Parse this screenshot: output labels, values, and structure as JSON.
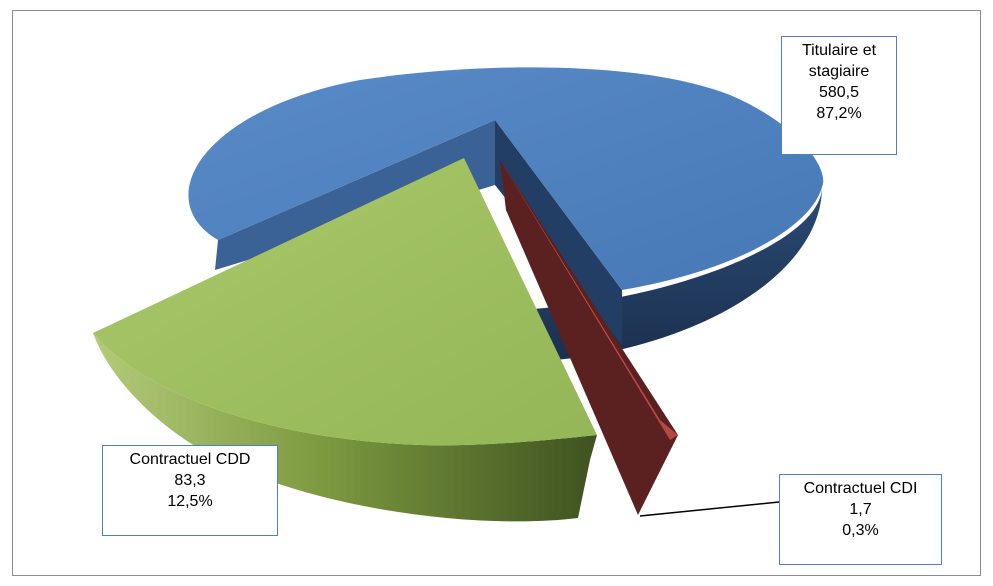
{
  "chart_data": {
    "type": "pie",
    "title": "",
    "series": [
      {
        "name": "",
        "slices": [
          {
            "label": "Titulaire  et stagiaire",
            "label_lines": [
              "Titulaire  et",
              "stagiaire"
            ],
            "value": 580.5,
            "value_text": "580,5",
            "percent": 87.2,
            "percent_text": "87,2%",
            "color": "#4f81bd"
          },
          {
            "label": "Contractuel  CDI",
            "label_lines": [
              "Contractuel  CDI"
            ],
            "value": 1.7,
            "value_text": "1,7",
            "percent": 0.3,
            "percent_text": "0,3%",
            "color": "#c0504d"
          },
          {
            "label": "Contractuel  CDD",
            "label_lines": [
              "Contractuel  CDD"
            ],
            "value": 83.3,
            "value_text": "83,3",
            "percent": 12.5,
            "percent_text": "12,5%",
            "color": "#9bbb59"
          }
        ]
      }
    ],
    "legend": "none",
    "style": "3d-exploded"
  }
}
